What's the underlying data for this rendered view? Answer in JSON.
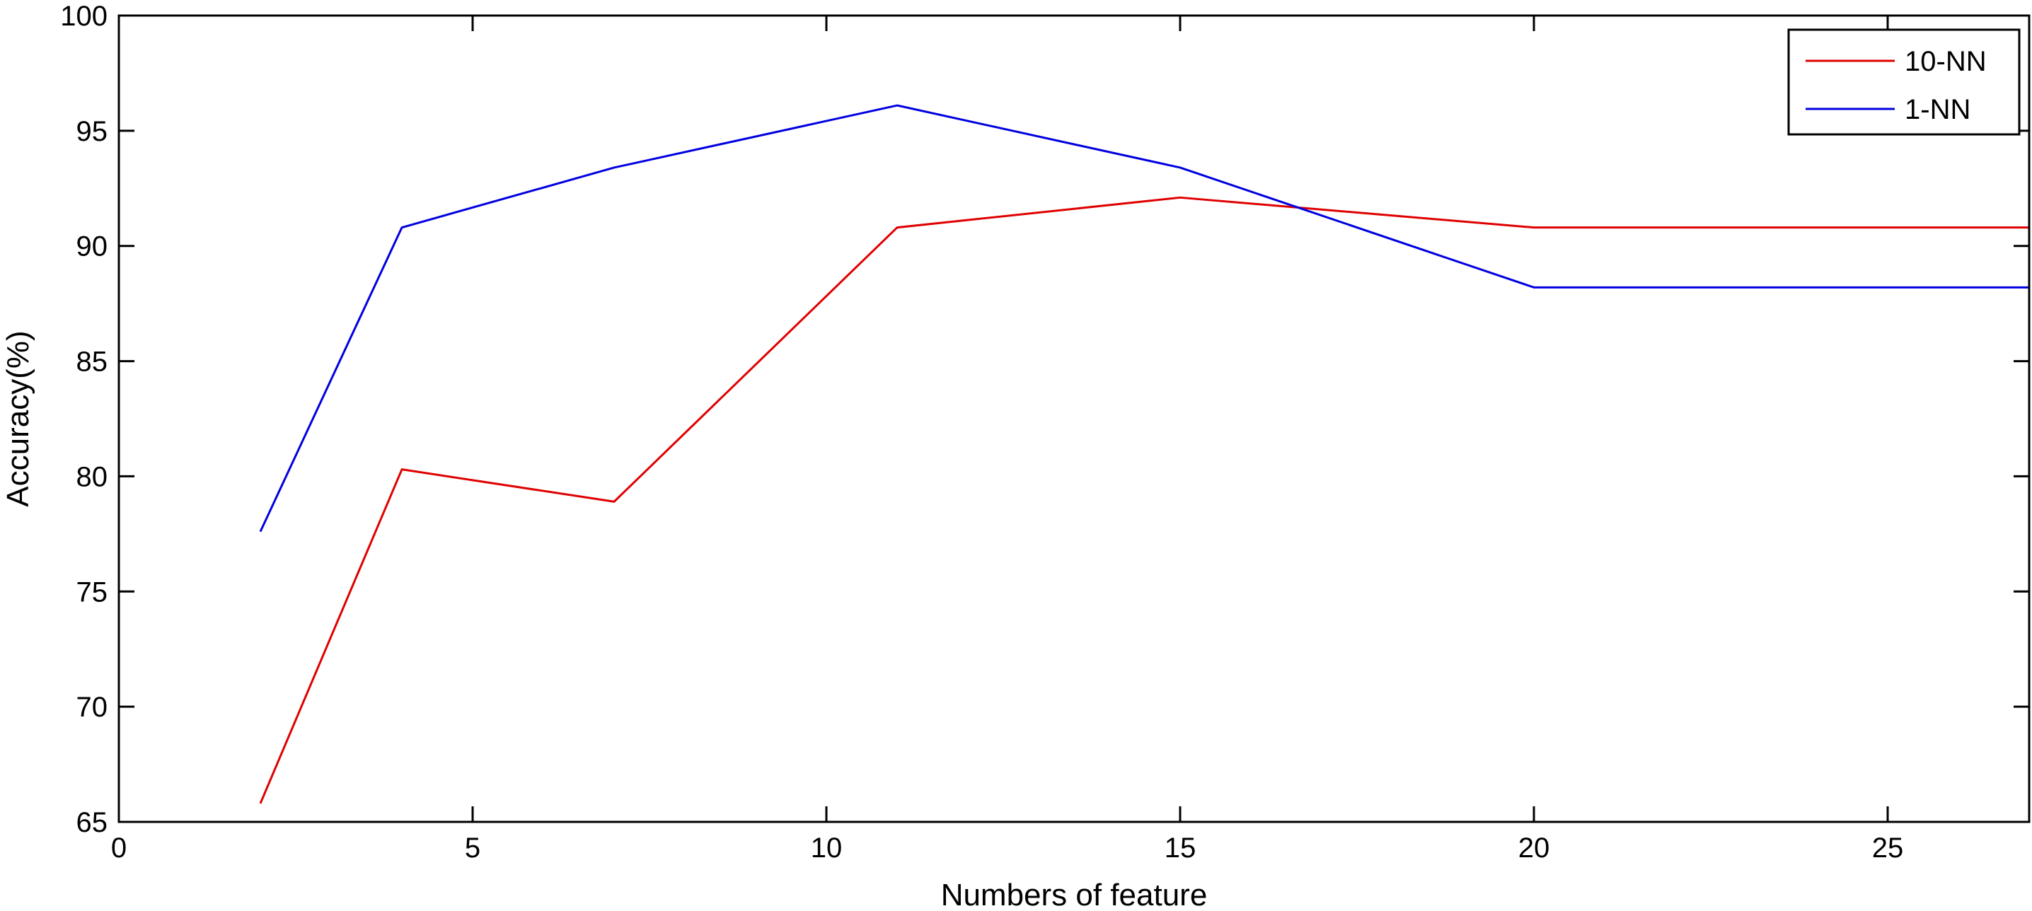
{
  "chart_data": {
    "type": "line",
    "title": "",
    "xlabel": "Numbers of feature",
    "ylabel": "Accuracy(%)",
    "xlim": [
      0,
      27
    ],
    "ylim": [
      65,
      100
    ],
    "xticks": [
      0,
      5,
      10,
      15,
      20,
      25
    ],
    "yticks": [
      65,
      70,
      75,
      80,
      85,
      90,
      95,
      100
    ],
    "grid": false,
    "legend_position": "top-right",
    "series": [
      {
        "name": "10-NN",
        "color": "#e00000",
        "x": [
          2,
          4,
          7,
          11,
          15,
          20,
          27
        ],
        "y": [
          65.8,
          80.3,
          78.9,
          90.8,
          92.1,
          90.8,
          90.8
        ]
      },
      {
        "name": "1-NN",
        "color": "#0000e0",
        "x": [
          2,
          4,
          7,
          11,
          15,
          20,
          27
        ],
        "y": [
          77.6,
          90.8,
          93.4,
          96.1,
          93.4,
          88.2,
          88.2
        ]
      }
    ]
  }
}
